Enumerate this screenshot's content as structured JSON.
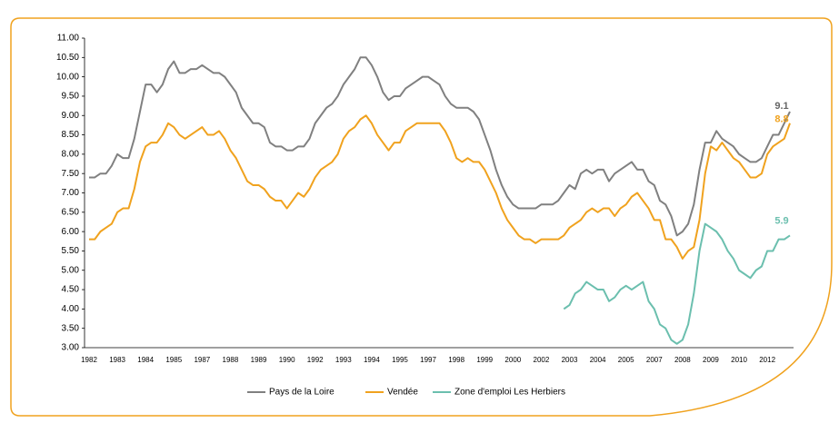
{
  "chart_data": {
    "type": "line",
    "categories": [
      "1982",
      null,
      null,
      null,
      null,
      "1983",
      null,
      null,
      null,
      null,
      "1984",
      null,
      null,
      null,
      null,
      "1985",
      null,
      null,
      null,
      null,
      "1987",
      null,
      null,
      null,
      null,
      "1988",
      null,
      null,
      null,
      null,
      "1989",
      null,
      null,
      null,
      null,
      "1990",
      null,
      null,
      null,
      null,
      "1992",
      null,
      null,
      null,
      null,
      "1993",
      null,
      null,
      null,
      null,
      "1994",
      null,
      null,
      null,
      null,
      "1995",
      null,
      null,
      null,
      null,
      "1997",
      null,
      null,
      null,
      null,
      "1998",
      null,
      null,
      null,
      null,
      "1999",
      null,
      null,
      null,
      null,
      "2000",
      null,
      null,
      null,
      null,
      "2002",
      null,
      null,
      null,
      null,
      "2003",
      null,
      null,
      null,
      null,
      "2004",
      null,
      null,
      null,
      null,
      "2005",
      null,
      null,
      null,
      null,
      "2007",
      null,
      null,
      null,
      null,
      "2008",
      null,
      null,
      null,
      null,
      "2009",
      null,
      null,
      null,
      null,
      "2010",
      null,
      null,
      null,
      null,
      "2012",
      null,
      null,
      null,
      null
    ],
    "series": [
      {
        "name": "Pays de la Loire",
        "color": "#808080",
        "values": [
          7.4,
          7.4,
          7.5,
          7.5,
          7.7,
          8.0,
          7.9,
          7.9,
          8.4,
          9.1,
          9.8,
          9.8,
          9.6,
          9.8,
          10.2,
          10.4,
          10.1,
          10.1,
          10.2,
          10.2,
          10.3,
          10.2,
          10.1,
          10.1,
          10.0,
          9.8,
          9.6,
          9.2,
          9.0,
          8.8,
          8.8,
          8.7,
          8.3,
          8.2,
          8.2,
          8.1,
          8.1,
          8.2,
          8.2,
          8.4,
          8.8,
          9.0,
          9.2,
          9.3,
          9.5,
          9.8,
          10.0,
          10.2,
          10.5,
          10.5,
          10.3,
          10.0,
          9.6,
          9.4,
          9.5,
          9.5,
          9.7,
          9.8,
          9.9,
          10.0,
          10.0,
          9.9,
          9.8,
          9.5,
          9.3,
          9.2,
          9.2,
          9.2,
          9.1,
          8.9,
          8.5,
          8.1,
          7.6,
          7.2,
          6.9,
          6.7,
          6.6,
          6.6,
          6.6,
          6.6,
          6.7,
          6.7,
          6.7,
          6.8,
          7.0,
          7.2,
          7.1,
          7.5,
          7.6,
          7.5,
          7.6,
          7.6,
          7.3,
          7.5,
          7.6,
          7.7,
          7.8,
          7.6,
          7.6,
          7.3,
          7.2,
          6.8,
          6.7,
          6.4,
          5.9,
          6.0,
          6.2,
          6.7,
          7.6,
          8.3,
          8.3,
          8.6,
          8.4,
          8.3,
          8.2,
          8.0,
          7.9,
          7.8,
          7.8,
          7.9,
          8.2,
          8.5,
          8.5,
          8.8,
          9.1
        ]
      },
      {
        "name": "Vendée",
        "color": "#f0a21e",
        "values": [
          5.8,
          5.8,
          6.0,
          6.1,
          6.2,
          6.5,
          6.6,
          6.6,
          7.1,
          7.8,
          8.2,
          8.3,
          8.3,
          8.5,
          8.8,
          8.7,
          8.5,
          8.4,
          8.5,
          8.6,
          8.7,
          8.5,
          8.5,
          8.6,
          8.4,
          8.1,
          7.9,
          7.6,
          7.3,
          7.2,
          7.2,
          7.1,
          6.9,
          6.8,
          6.8,
          6.6,
          6.8,
          7.0,
          6.9,
          7.1,
          7.4,
          7.6,
          7.7,
          7.8,
          8.0,
          8.4,
          8.6,
          8.7,
          8.9,
          9.0,
          8.8,
          8.5,
          8.3,
          8.1,
          8.3,
          8.3,
          8.6,
          8.7,
          8.8,
          8.8,
          8.8,
          8.8,
          8.8,
          8.6,
          8.3,
          7.9,
          7.8,
          7.9,
          7.8,
          7.8,
          7.6,
          7.3,
          7.0,
          6.6,
          6.3,
          6.1,
          5.9,
          5.8,
          5.8,
          5.7,
          5.8,
          5.8,
          5.8,
          5.8,
          5.9,
          6.1,
          6.2,
          6.3,
          6.5,
          6.6,
          6.5,
          6.6,
          6.6,
          6.4,
          6.6,
          6.7,
          6.9,
          7.0,
          6.8,
          6.6,
          6.3,
          6.3,
          5.8,
          5.8,
          5.6,
          5.3,
          5.5,
          5.6,
          6.3,
          7.5,
          8.2,
          8.1,
          8.3,
          8.1,
          7.9,
          7.8,
          7.6,
          7.4,
          7.4,
          7.5,
          8.0,
          8.2,
          8.3,
          8.4,
          8.8
        ]
      },
      {
        "name": "Zone d'emploi Les Herbiers",
        "color": "#6bbfae",
        "values": [
          null,
          null,
          null,
          null,
          null,
          null,
          null,
          null,
          null,
          null,
          null,
          null,
          null,
          null,
          null,
          null,
          null,
          null,
          null,
          null,
          null,
          null,
          null,
          null,
          null,
          null,
          null,
          null,
          null,
          null,
          null,
          null,
          null,
          null,
          null,
          null,
          null,
          null,
          null,
          null,
          null,
          null,
          null,
          null,
          null,
          null,
          null,
          null,
          null,
          null,
          null,
          null,
          null,
          null,
          null,
          null,
          null,
          null,
          null,
          null,
          null,
          null,
          null,
          null,
          null,
          null,
          null,
          null,
          null,
          null,
          null,
          null,
          null,
          null,
          null,
          null,
          null,
          null,
          null,
          null,
          null,
          null,
          null,
          null,
          4.0,
          4.1,
          4.4,
          4.5,
          4.7,
          4.6,
          4.5,
          4.5,
          4.2,
          4.3,
          4.5,
          4.6,
          4.5,
          4.6,
          4.7,
          4.2,
          4.0,
          3.6,
          3.5,
          3.2,
          3.1,
          3.2,
          3.6,
          4.4,
          5.5,
          6.2,
          6.1,
          6.0,
          5.8,
          5.5,
          5.3,
          5.0,
          4.9,
          4.8,
          5.0,
          5.1,
          5.5,
          5.5,
          5.8,
          5.8,
          5.9
        ]
      }
    ],
    "ylim": [
      3,
      11
    ],
    "yticks": [
      {
        "value": 3,
        "label": "3.00"
      },
      {
        "value": 3.5,
        "label": "3.50"
      },
      {
        "value": 4,
        "label": "4.00"
      },
      {
        "value": 4.5,
        "label": "4.50"
      },
      {
        "value": 5,
        "label": "5.00"
      },
      {
        "value": 5.5,
        "label": "5.50"
      },
      {
        "value": 6,
        "label": "6.00"
      },
      {
        "value": 6.5,
        "label": "6.50"
      },
      {
        "value": 7,
        "label": "7.00"
      },
      {
        "value": 7.5,
        "label": "7.50"
      },
      {
        "value": 8,
        "label": "8.00"
      },
      {
        "value": 8.5,
        "label": "8.50"
      },
      {
        "value": 9,
        "label": "9.00"
      },
      {
        "value": 9.5,
        "label": "9.50"
      },
      {
        "value": 10,
        "label": "10.00"
      },
      {
        "value": 10.5,
        "label": "10.50"
      },
      {
        "value": 11,
        "label": "11.00"
      }
    ],
    "legend": "bottom"
  }
}
